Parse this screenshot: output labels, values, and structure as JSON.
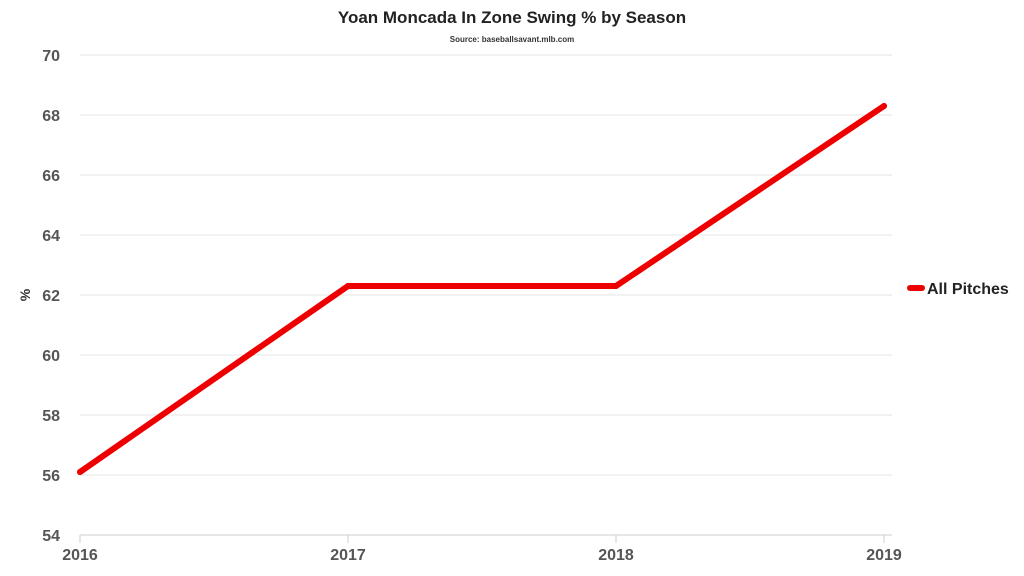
{
  "chart_data": {
    "type": "line",
    "title": "Yoan Moncada In Zone Swing % by Season",
    "subtitle": "Source: baseballsavant.mlb.com",
    "xlabel": "",
    "ylabel": "%",
    "categories": [
      "2016",
      "2017",
      "2018",
      "2019"
    ],
    "series": [
      {
        "name": "All Pitches",
        "color": "#ee0000",
        "values": [
          56.1,
          62.3,
          62.3,
          68.3
        ]
      }
    ],
    "ylim": [
      54,
      70
    ],
    "yticks": [
      54,
      56,
      58,
      60,
      62,
      64,
      66,
      68,
      70
    ],
    "grid": true,
    "legend_position": "right"
  }
}
